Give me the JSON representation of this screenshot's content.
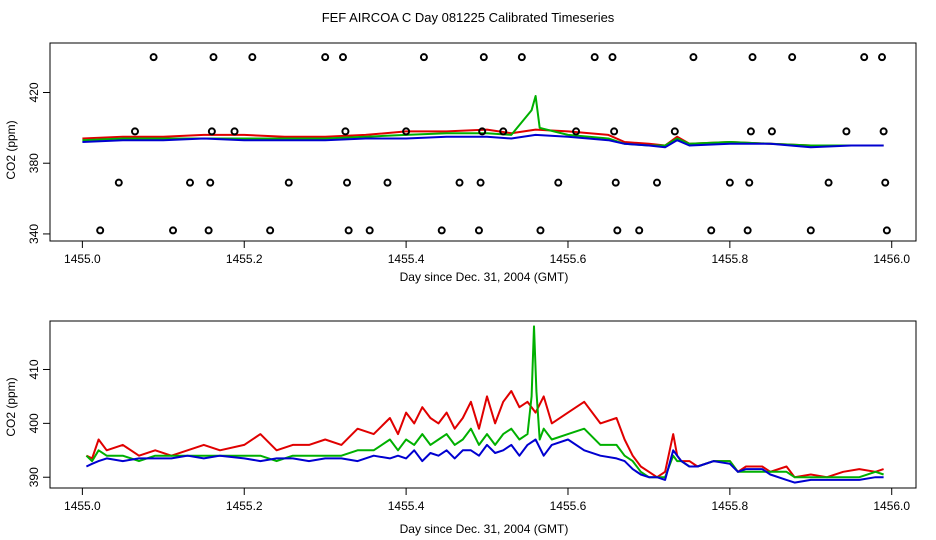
{
  "page_title": "FEF AIRCOA C  Day 081225  Calibrated Timeseries",
  "chart_data": [
    {
      "type": "line",
      "title": "FEF AIRCOA C  Day 081225  Calibrated Timeseries",
      "xlabel": "Day since Dec. 31, 2004 (GMT)",
      "ylabel": "CO2 (ppm)",
      "xlim": [
        1454.96,
        1456.03
      ],
      "ylim": [
        336,
        448
      ],
      "xticks": [
        1455.0,
        1455.2,
        1455.4,
        1455.6,
        1455.8,
        1456.0
      ],
      "xtick_labels": [
        "1455.0",
        "1455.2",
        "1455.4",
        "1455.6",
        "1455.8",
        "1456.0"
      ],
      "yticks": [
        340,
        380,
        420
      ],
      "ytick_labels": [
        "340",
        "380",
        "420"
      ],
      "series": [
        {
          "name": "red",
          "color": "#e00000",
          "x": [
            1455.0,
            1455.05,
            1455.1,
            1455.15,
            1455.2,
            1455.25,
            1455.3,
            1455.35,
            1455.4,
            1455.45,
            1455.5,
            1455.53,
            1455.56,
            1455.6,
            1455.65,
            1455.67,
            1455.7,
            1455.72,
            1455.735,
            1455.75,
            1455.8,
            1455.85,
            1455.9,
            1455.95,
            1455.99
          ],
          "y": [
            394,
            395,
            395,
            396,
            396,
            395,
            395,
            396,
            398,
            398,
            399,
            397,
            399,
            398,
            396,
            392,
            391,
            390,
            395,
            391,
            392,
            391,
            390,
            390,
            390
          ]
        },
        {
          "name": "green",
          "color": "#00b000",
          "x": [
            1455.0,
            1455.05,
            1455.1,
            1455.15,
            1455.2,
            1455.25,
            1455.3,
            1455.35,
            1455.4,
            1455.45,
            1455.5,
            1455.53,
            1455.555,
            1455.56,
            1455.565,
            1455.6,
            1455.65,
            1455.67,
            1455.7,
            1455.72,
            1455.735,
            1455.75,
            1455.8,
            1455.85,
            1455.9,
            1455.95,
            1455.99
          ],
          "y": [
            393,
            394,
            394,
            394,
            394,
            394,
            394,
            395,
            396,
            397,
            397,
            396,
            410,
            418,
            400,
            396,
            394,
            391,
            390,
            390,
            394,
            391,
            392,
            391,
            390,
            390,
            390
          ]
        },
        {
          "name": "blue",
          "color": "#0000d0",
          "x": [
            1455.0,
            1455.05,
            1455.1,
            1455.15,
            1455.2,
            1455.25,
            1455.3,
            1455.35,
            1455.4,
            1455.45,
            1455.5,
            1455.53,
            1455.56,
            1455.6,
            1455.65,
            1455.67,
            1455.7,
            1455.72,
            1455.735,
            1455.75,
            1455.8,
            1455.85,
            1455.9,
            1455.95,
            1455.99
          ],
          "y": [
            392,
            393,
            393,
            394,
            393,
            393,
            393,
            394,
            394,
            395,
            395,
            394,
            396,
            395,
            393,
            391,
            390,
            389,
            393,
            390,
            391,
            391,
            389,
            390,
            390
          ]
        }
      ],
      "markers": [
        {
          "x": 1455.022,
          "y": 342
        },
        {
          "x": 1455.045,
          "y": 369
        },
        {
          "x": 1455.065,
          "y": 398
        },
        {
          "x": 1455.088,
          "y": 440
        },
        {
          "x": 1455.112,
          "y": 342
        },
        {
          "x": 1455.133,
          "y": 369
        },
        {
          "x": 1455.156,
          "y": 342
        },
        {
          "x": 1455.158,
          "y": 369
        },
        {
          "x": 1455.16,
          "y": 398
        },
        {
          "x": 1455.162,
          "y": 440
        },
        {
          "x": 1455.188,
          "y": 398
        },
        {
          "x": 1455.21,
          "y": 440
        },
        {
          "x": 1455.232,
          "y": 342
        },
        {
          "x": 1455.255,
          "y": 369
        },
        {
          "x": 1455.3,
          "y": 440
        },
        {
          "x": 1455.322,
          "y": 440
        },
        {
          "x": 1455.325,
          "y": 398
        },
        {
          "x": 1455.327,
          "y": 369
        },
        {
          "x": 1455.329,
          "y": 342
        },
        {
          "x": 1455.355,
          "y": 342
        },
        {
          "x": 1455.377,
          "y": 369
        },
        {
          "x": 1455.4,
          "y": 398
        },
        {
          "x": 1455.422,
          "y": 440
        },
        {
          "x": 1455.444,
          "y": 342
        },
        {
          "x": 1455.466,
          "y": 369
        },
        {
          "x": 1455.49,
          "y": 342
        },
        {
          "x": 1455.492,
          "y": 369
        },
        {
          "x": 1455.494,
          "y": 398
        },
        {
          "x": 1455.496,
          "y": 440
        },
        {
          "x": 1455.52,
          "y": 398
        },
        {
          "x": 1455.543,
          "y": 440
        },
        {
          "x": 1455.566,
          "y": 342
        },
        {
          "x": 1455.588,
          "y": 369
        },
        {
          "x": 1455.61,
          "y": 398
        },
        {
          "x": 1455.633,
          "y": 440
        },
        {
          "x": 1455.655,
          "y": 440
        },
        {
          "x": 1455.657,
          "y": 398
        },
        {
          "x": 1455.659,
          "y": 369
        },
        {
          "x": 1455.661,
          "y": 342
        },
        {
          "x": 1455.688,
          "y": 342
        },
        {
          "x": 1455.71,
          "y": 369
        },
        {
          "x": 1455.732,
          "y": 398
        },
        {
          "x": 1455.755,
          "y": 440
        },
        {
          "x": 1455.777,
          "y": 342
        },
        {
          "x": 1455.8,
          "y": 369
        },
        {
          "x": 1455.822,
          "y": 342
        },
        {
          "x": 1455.824,
          "y": 369
        },
        {
          "x": 1455.826,
          "y": 398
        },
        {
          "x": 1455.828,
          "y": 440
        },
        {
          "x": 1455.852,
          "y": 398
        },
        {
          "x": 1455.877,
          "y": 440
        },
        {
          "x": 1455.9,
          "y": 342
        },
        {
          "x": 1455.922,
          "y": 369
        },
        {
          "x": 1455.944,
          "y": 398
        },
        {
          "x": 1455.966,
          "y": 440
        },
        {
          "x": 1455.988,
          "y": 440
        },
        {
          "x": 1455.99,
          "y": 398
        },
        {
          "x": 1455.992,
          "y": 369
        },
        {
          "x": 1455.994,
          "y": 342
        }
      ]
    },
    {
      "type": "line",
      "title": "",
      "xlabel": "Day since Dec. 31, 2004 (GMT)",
      "ylabel": "CO2 (ppm)",
      "xlim": [
        1454.96,
        1456.03
      ],
      "ylim": [
        388,
        419
      ],
      "xticks": [
        1455.0,
        1455.2,
        1455.4,
        1455.6,
        1455.8,
        1456.0
      ],
      "xtick_labels": [
        "1455.0",
        "1455.2",
        "1455.4",
        "1455.6",
        "1455.8",
        "1456.0"
      ],
      "yticks": [
        390,
        400,
        410
      ],
      "ytick_labels": [
        "390",
        "400",
        "410"
      ],
      "series": [
        {
          "name": "red",
          "color": "#e00000",
          "x": [
            1455.005,
            1455.012,
            1455.02,
            1455.03,
            1455.05,
            1455.07,
            1455.09,
            1455.11,
            1455.13,
            1455.15,
            1455.17,
            1455.2,
            1455.22,
            1455.24,
            1455.26,
            1455.28,
            1455.3,
            1455.32,
            1455.34,
            1455.36,
            1455.38,
            1455.39,
            1455.4,
            1455.41,
            1455.42,
            1455.43,
            1455.44,
            1455.45,
            1455.46,
            1455.47,
            1455.48,
            1455.49,
            1455.5,
            1455.51,
            1455.52,
            1455.53,
            1455.54,
            1455.55,
            1455.56,
            1455.57,
            1455.58,
            1455.6,
            1455.62,
            1455.64,
            1455.66,
            1455.67,
            1455.68,
            1455.69,
            1455.7,
            1455.71,
            1455.72,
            1455.73,
            1455.735,
            1455.74,
            1455.75,
            1455.76,
            1455.78,
            1455.8,
            1455.81,
            1455.82,
            1455.84,
            1455.85,
            1455.87,
            1455.88,
            1455.9,
            1455.92,
            1455.94,
            1455.96,
            1455.98,
            1455.99
          ],
          "y": [
            394,
            393.5,
            397,
            395,
            396,
            394,
            395,
            394,
            395,
            396,
            395,
            396,
            398,
            395,
            396,
            396,
            397,
            396,
            399,
            398,
            401,
            398,
            402,
            400,
            403,
            401,
            400,
            402,
            399,
            401,
            404,
            399,
            405,
            400,
            404,
            406,
            403,
            404,
            402,
            405,
            400,
            402,
            404,
            400,
            401,
            397,
            394,
            392,
            391,
            390,
            391,
            398,
            394,
            393,
            393,
            392,
            393,
            393,
            391,
            392,
            392,
            391,
            392,
            390,
            390.5,
            390,
            391,
            391.5,
            391,
            391.5
          ]
        },
        {
          "name": "green",
          "color": "#00b000",
          "x": [
            1455.005,
            1455.012,
            1455.02,
            1455.03,
            1455.05,
            1455.07,
            1455.09,
            1455.11,
            1455.13,
            1455.15,
            1455.17,
            1455.2,
            1455.22,
            1455.24,
            1455.26,
            1455.28,
            1455.3,
            1455.32,
            1455.34,
            1455.36,
            1455.38,
            1455.39,
            1455.4,
            1455.41,
            1455.42,
            1455.43,
            1455.44,
            1455.45,
            1455.46,
            1455.47,
            1455.48,
            1455.49,
            1455.5,
            1455.51,
            1455.52,
            1455.53,
            1455.54,
            1455.55,
            1455.555,
            1455.558,
            1455.561,
            1455.565,
            1455.57,
            1455.58,
            1455.6,
            1455.62,
            1455.64,
            1455.66,
            1455.67,
            1455.68,
            1455.69,
            1455.7,
            1455.71,
            1455.72,
            1455.73,
            1455.735,
            1455.74,
            1455.75,
            1455.76,
            1455.78,
            1455.8,
            1455.81,
            1455.82,
            1455.84,
            1455.85,
            1455.87,
            1455.88,
            1455.9,
            1455.92,
            1455.94,
            1455.96,
            1455.98,
            1455.99
          ],
          "y": [
            394,
            393,
            395,
            394,
            394,
            393,
            394,
            394,
            394,
            394,
            394,
            394,
            394,
            393,
            394,
            394,
            394,
            394,
            395,
            395,
            397,
            395,
            397,
            396,
            398,
            396,
            397,
            398,
            396,
            397,
            399,
            396,
            398,
            396,
            398,
            399,
            397,
            398,
            405,
            418,
            406,
            397,
            399,
            397,
            398,
            399,
            396,
            396,
            394,
            393,
            391,
            390,
            390,
            390,
            394,
            393,
            393,
            392,
            392,
            393,
            393,
            391,
            391,
            391,
            391,
            391,
            390,
            390,
            390,
            390,
            390,
            391,
            390.5
          ]
        },
        {
          "name": "blue",
          "color": "#0000d0",
          "x": [
            1455.005,
            1455.012,
            1455.02,
            1455.03,
            1455.05,
            1455.07,
            1455.09,
            1455.11,
            1455.13,
            1455.15,
            1455.17,
            1455.2,
            1455.22,
            1455.24,
            1455.26,
            1455.28,
            1455.3,
            1455.32,
            1455.34,
            1455.36,
            1455.38,
            1455.39,
            1455.4,
            1455.41,
            1455.42,
            1455.43,
            1455.44,
            1455.45,
            1455.46,
            1455.47,
            1455.48,
            1455.49,
            1455.5,
            1455.51,
            1455.52,
            1455.53,
            1455.54,
            1455.55,
            1455.56,
            1455.57,
            1455.58,
            1455.6,
            1455.62,
            1455.64,
            1455.66,
            1455.67,
            1455.68,
            1455.69,
            1455.7,
            1455.71,
            1455.72,
            1455.73,
            1455.735,
            1455.74,
            1455.75,
            1455.76,
            1455.78,
            1455.8,
            1455.81,
            1455.82,
            1455.84,
            1455.85,
            1455.87,
            1455.88,
            1455.9,
            1455.92,
            1455.94,
            1455.96,
            1455.98,
            1455.99
          ],
          "y": [
            392,
            392.5,
            393,
            393.5,
            393,
            393.5,
            393.5,
            393.5,
            394,
            393.5,
            394,
            393.5,
            393,
            393.5,
            393.5,
            393,
            393.5,
            393.5,
            393,
            394,
            393.5,
            394,
            393.5,
            395,
            393,
            394.5,
            394,
            395,
            393.5,
            395,
            395,
            394,
            396,
            394.5,
            395,
            396,
            394,
            396,
            397,
            394,
            396,
            397,
            395,
            394,
            393.5,
            393,
            391.5,
            390.5,
            390,
            390,
            389.5,
            395,
            394,
            393,
            392,
            392,
            393,
            392.5,
            391,
            391.5,
            391.5,
            390.5,
            389.5,
            389,
            389.5,
            389.5,
            389.5,
            389.5,
            390,
            390
          ]
        }
      ]
    }
  ]
}
